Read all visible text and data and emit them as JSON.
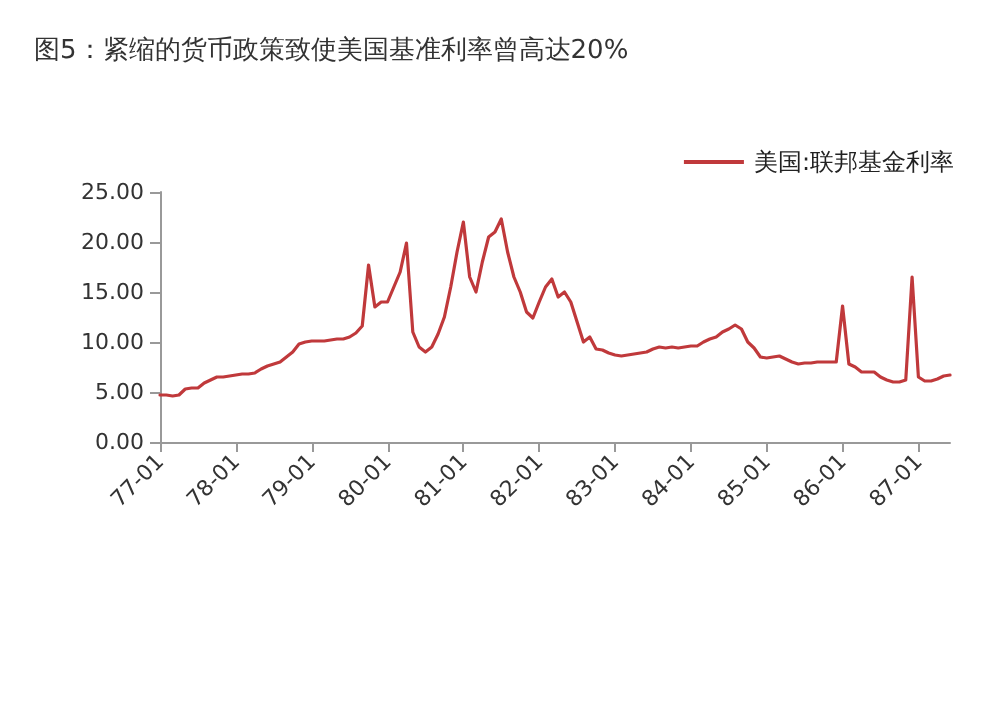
{
  "chart_data": {
    "type": "line",
    "title": "图5：紧缩的货币政策致使美国基准利率曾高达20%",
    "categories": [
      "77-01",
      null,
      null,
      null,
      null,
      null,
      null,
      null,
      null,
      null,
      null,
      null,
      "78-01",
      null,
      null,
      null,
      null,
      null,
      null,
      null,
      null,
      null,
      null,
      null,
      "79-01",
      null,
      null,
      null,
      null,
      null,
      null,
      null,
      null,
      null,
      null,
      null,
      "80-01",
      null,
      null,
      null,
      null,
      null,
      null,
      null,
      null,
      null,
      null,
      null,
      "81-01",
      null,
      null,
      null,
      null,
      null,
      null,
      null,
      null,
      null,
      null,
      null,
      "82-01",
      null,
      null,
      null,
      null,
      null,
      null,
      null,
      null,
      null,
      null,
      null,
      "83-01",
      null,
      null,
      null,
      null,
      null,
      null,
      null,
      null,
      null,
      null,
      null,
      "84-01",
      null,
      null,
      null,
      null,
      null,
      null,
      null,
      null,
      null,
      null,
      null,
      "85-01",
      null,
      null,
      null,
      null,
      null,
      null,
      null,
      null,
      null,
      null,
      null,
      "86-01",
      null,
      null,
      null,
      null,
      null,
      null,
      null,
      null,
      null,
      null,
      null,
      "87-01",
      null,
      null,
      null,
      null,
      null
    ],
    "series": [
      {
        "name": "美国:联邦基金利率",
        "color": "#c0393b",
        "values": [
          4.7,
          4.7,
          4.6,
          4.7,
          5.3,
          5.4,
          5.4,
          5.9,
          6.2,
          6.5,
          6.5,
          6.6,
          6.7,
          6.8,
          6.8,
          6.9,
          7.3,
          7.6,
          7.8,
          8.0,
          8.5,
          9.0,
          9.8,
          10.0,
          10.1,
          10.1,
          10.1,
          10.2,
          10.3,
          10.3,
          10.5,
          10.9,
          11.6,
          17.7,
          13.5,
          14.0,
          14.0,
          15.5,
          17.0,
          19.9,
          11.0,
          9.5,
          9.0,
          9.5,
          10.8,
          12.5,
          15.5,
          19.0,
          22.0,
          16.5,
          15.0,
          18.0,
          20.5,
          21.0,
          22.3,
          19.0,
          16.5,
          15.0,
          13.0,
          12.4,
          14.0,
          15.5,
          16.3,
          14.5,
          15.0,
          14.0,
          12.0,
          10.0,
          10.5,
          9.3,
          9.2,
          8.9,
          8.7,
          8.6,
          8.7,
          8.8,
          8.9,
          9.0,
          9.3,
          9.5,
          9.4,
          9.5,
          9.4,
          9.5,
          9.6,
          9.6,
          10.0,
          10.3,
          10.5,
          11.0,
          11.3,
          11.7,
          11.3,
          10.0,
          9.4,
          8.5,
          8.4,
          8.5,
          8.6,
          8.3,
          8.0,
          7.8,
          7.9,
          7.9,
          8.0,
          8.0,
          8.0,
          8.0,
          13.6,
          7.8,
          7.5,
          7.0,
          7.0,
          7.0,
          6.5,
          6.2,
          6.0,
          6.0,
          6.2,
          16.5,
          6.5,
          6.1,
          6.1,
          6.3,
          6.6,
          6.7
        ]
      }
    ],
    "ylim": [
      0,
      25
    ],
    "yticks": [
      {
        "value": 0,
        "label": "0.00"
      },
      {
        "value": 5,
        "label": "5.00"
      },
      {
        "value": 10,
        "label": "10.00"
      },
      {
        "value": 15,
        "label": "15.00"
      },
      {
        "value": 20,
        "label": "20.00"
      },
      {
        "value": 25,
        "label": "25.00"
      }
    ],
    "legend": "top right",
    "grid": false,
    "marker": "none",
    "line_style": "solid"
  }
}
